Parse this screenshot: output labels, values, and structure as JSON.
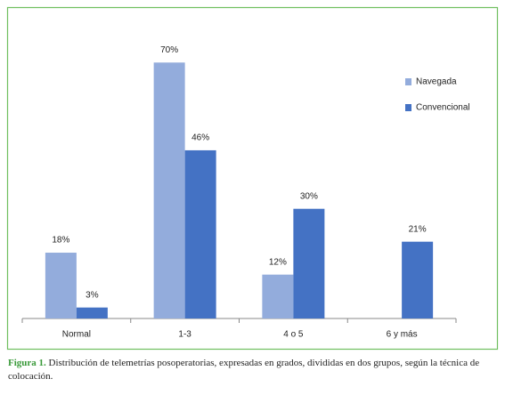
{
  "chart_data": {
    "type": "bar",
    "categories": [
      "Normal",
      "1-3",
      "4 o 5",
      "6 y más"
    ],
    "series": [
      {
        "name": "Navegada",
        "color": "#93acdc",
        "values": [
          18,
          70,
          12,
          null
        ],
        "value_labels": [
          "18%",
          "70%",
          "12%",
          null
        ]
      },
      {
        "name": "Convencional",
        "color": "#4472c4",
        "values": [
          3,
          46,
          30,
          21
        ],
        "value_labels": [
          "3%",
          "46%",
          "30%",
          "21%"
        ]
      }
    ],
    "legend": "right"
  },
  "caption": {
    "label": "Figura 1.",
    "text": "Distribución de telemetrías posoperatorias, expresadas en grados, divididas en dos grupos, según la técnica de colocación."
  }
}
